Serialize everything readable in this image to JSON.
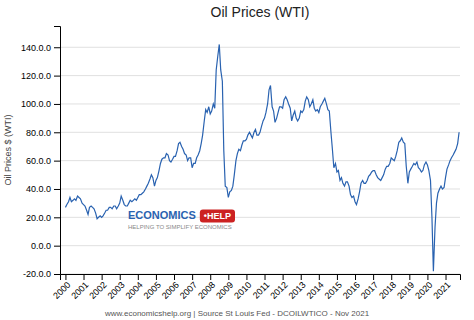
{
  "chart_data": {
    "type": "line",
    "title": "Oil Prices (WTI)",
    "ylabel": "Oil Prices $ (WTI)",
    "annotations": [
      "ECONOMICS",
      "•HELP",
      "HELPING TO SIMPLIFY ECONOMICS",
      "www.economicshelp.org | Source St Louis Fed - DCOILWTICO - Nov 2021"
    ],
    "color": "#2962b0",
    "grid": true,
    "xlim": [
      1999.7,
      2021.8
    ],
    "xticks": [
      2000,
      2001,
      2002,
      2003,
      2004,
      2005,
      2006,
      2007,
      2008,
      2009,
      2010,
      2011,
      2012,
      2013,
      2014,
      2015,
      2016,
      2017,
      2018,
      2019,
      2020,
      2021
    ],
    "ylim": [
      -20.0,
      155.0
    ],
    "yticks": [
      {
        "value": -20.0,
        "label": "-20.0.0"
      },
      {
        "value": 0.0,
        "label": "0.0.0"
      },
      {
        "value": 20.0,
        "label": "20.0.0"
      },
      {
        "value": 40.0,
        "label": "40.0.0"
      },
      {
        "value": 60.0,
        "label": "60.0.0"
      },
      {
        "value": 80.0,
        "label": "80.0.0"
      },
      {
        "value": 100.0,
        "label": "100.0.0"
      },
      {
        "value": 120.0,
        "label": "120.0.0"
      },
      {
        "value": 140.0,
        "label": "140.0.0"
      }
    ],
    "x": [
      2000.0,
      2000.08,
      2000.17,
      2000.25,
      2000.33,
      2000.42,
      2000.5,
      2000.58,
      2000.67,
      2000.75,
      2000.83,
      2000.92,
      2001.0,
      2001.08,
      2001.17,
      2001.25,
      2001.33,
      2001.42,
      2001.5,
      2001.58,
      2001.67,
      2001.75,
      2001.83,
      2001.92,
      2002.0,
      2002.08,
      2002.17,
      2002.25,
      2002.33,
      2002.42,
      2002.5,
      2002.58,
      2002.67,
      2002.75,
      2002.83,
      2002.92,
      2003.0,
      2003.08,
      2003.17,
      2003.25,
      2003.33,
      2003.42,
      2003.5,
      2003.58,
      2003.67,
      2003.75,
      2003.83,
      2003.92,
      2004.0,
      2004.08,
      2004.17,
      2004.25,
      2004.33,
      2004.42,
      2004.5,
      2004.58,
      2004.67,
      2004.75,
      2004.83,
      2004.92,
      2005.0,
      2005.08,
      2005.17,
      2005.25,
      2005.33,
      2005.42,
      2005.5,
      2005.58,
      2005.67,
      2005.75,
      2005.83,
      2005.92,
      2006.0,
      2006.08,
      2006.17,
      2006.25,
      2006.33,
      2006.42,
      2006.5,
      2006.58,
      2006.67,
      2006.75,
      2006.83,
      2006.92,
      2007.0,
      2007.08,
      2007.17,
      2007.25,
      2007.33,
      2007.42,
      2007.5,
      2007.58,
      2007.67,
      2007.75,
      2007.83,
      2007.92,
      2008.0,
      2008.08,
      2008.17,
      2008.25,
      2008.33,
      2008.42,
      2008.5,
      2008.58,
      2008.67,
      2008.75,
      2008.83,
      2008.92,
      2009.0,
      2009.08,
      2009.17,
      2009.25,
      2009.33,
      2009.42,
      2009.5,
      2009.58,
      2009.67,
      2009.75,
      2009.83,
      2009.92,
      2010.0,
      2010.08,
      2010.17,
      2010.25,
      2010.33,
      2010.42,
      2010.5,
      2010.58,
      2010.67,
      2010.75,
      2010.83,
      2010.92,
      2011.0,
      2011.08,
      2011.17,
      2011.25,
      2011.33,
      2011.42,
      2011.5,
      2011.58,
      2011.67,
      2011.75,
      2011.83,
      2011.92,
      2012.0,
      2012.08,
      2012.17,
      2012.25,
      2012.33,
      2012.42,
      2012.5,
      2012.58,
      2012.67,
      2012.75,
      2012.83,
      2012.92,
      2013.0,
      2013.08,
      2013.17,
      2013.25,
      2013.33,
      2013.42,
      2013.5,
      2013.58,
      2013.67,
      2013.75,
      2013.83,
      2013.92,
      2014.0,
      2014.08,
      2014.17,
      2014.25,
      2014.33,
      2014.42,
      2014.5,
      2014.58,
      2014.67,
      2014.75,
      2014.83,
      2014.92,
      2015.0,
      2015.08,
      2015.17,
      2015.25,
      2015.33,
      2015.42,
      2015.5,
      2015.58,
      2015.67,
      2015.75,
      2015.83,
      2015.92,
      2016.0,
      2016.08,
      2016.17,
      2016.25,
      2016.33,
      2016.42,
      2016.5,
      2016.58,
      2016.67,
      2016.75,
      2016.83,
      2016.92,
      2017.0,
      2017.08,
      2017.17,
      2017.25,
      2017.33,
      2017.42,
      2017.5,
      2017.58,
      2017.67,
      2017.75,
      2017.83,
      2017.92,
      2018.0,
      2018.08,
      2018.17,
      2018.25,
      2018.33,
      2018.42,
      2018.5,
      2018.58,
      2018.67,
      2018.75,
      2018.83,
      2018.92,
      2019.0,
      2019.08,
      2019.17,
      2019.25,
      2019.33,
      2019.42,
      2019.5,
      2019.58,
      2019.67,
      2019.75,
      2019.83,
      2019.92,
      2020.0,
      2020.08,
      2020.17,
      2020.25,
      2020.33,
      2020.42,
      2020.5,
      2020.58,
      2020.67,
      2020.75,
      2020.83,
      2020.92,
      2021.0,
      2021.08,
      2021.17,
      2021.25,
      2021.33,
      2021.42,
      2021.5,
      2021.58,
      2021.67,
      2021.75
    ],
    "values": [
      27,
      29,
      31,
      34,
      31,
      32,
      33,
      32,
      35,
      34,
      33,
      30,
      29,
      28,
      25,
      22,
      27,
      28,
      27,
      26,
      23,
      19,
      20,
      21,
      20,
      21,
      23,
      25,
      25,
      27,
      27,
      26,
      28,
      28,
      26,
      28,
      30,
      35,
      32,
      29,
      28,
      28,
      30,
      32,
      31,
      32,
      33,
      32,
      34,
      36,
      36,
      37,
      38,
      40,
      42,
      44,
      47,
      50,
      48,
      42,
      46,
      48,
      53,
      58,
      61,
      62,
      62,
      65,
      64,
      60,
      59,
      61,
      63,
      63,
      67,
      72,
      73,
      70,
      68,
      65,
      64,
      60,
      62,
      62,
      55,
      58,
      58,
      62,
      64,
      67,
      72,
      78,
      88,
      96,
      94,
      98,
      93,
      95,
      100,
      97,
      124,
      134,
      142,
      124,
      116,
      67,
      42,
      41,
      34,
      38,
      39,
      42,
      50,
      60,
      65,
      68,
      67,
      71,
      74,
      74,
      75,
      78,
      80,
      78,
      76,
      80,
      82,
      78,
      78,
      80,
      84,
      88,
      90,
      94,
      100,
      110,
      113,
      98,
      95,
      87,
      90,
      94,
      98,
      98,
      97,
      103,
      105,
      103,
      100,
      97,
      88,
      92,
      95,
      90,
      88,
      90,
      95,
      94,
      96,
      102,
      105,
      103,
      98,
      100,
      103,
      97,
      95,
      96,
      94,
      98,
      100,
      102,
      104,
      100,
      96,
      95,
      80,
      68,
      55,
      58,
      52,
      53,
      46,
      48,
      44,
      42,
      45,
      45,
      42,
      36,
      34,
      35,
      31,
      29,
      33,
      38,
      44,
      46,
      44,
      44,
      46,
      49,
      50,
      52,
      53,
      53,
      50,
      48,
      47,
      46,
      48,
      50,
      54,
      56,
      56,
      58,
      62,
      61,
      60,
      63,
      67,
      73,
      74,
      76,
      73,
      72,
      56,
      44,
      52,
      54,
      56,
      58,
      57,
      59,
      55,
      54,
      52,
      53,
      57,
      59,
      57,
      53,
      46,
      20,
      -18,
      13,
      30,
      37,
      40,
      42,
      40,
      41,
      48,
      54,
      57,
      60,
      62,
      64,
      66,
      68,
      72,
      80
    ]
  }
}
